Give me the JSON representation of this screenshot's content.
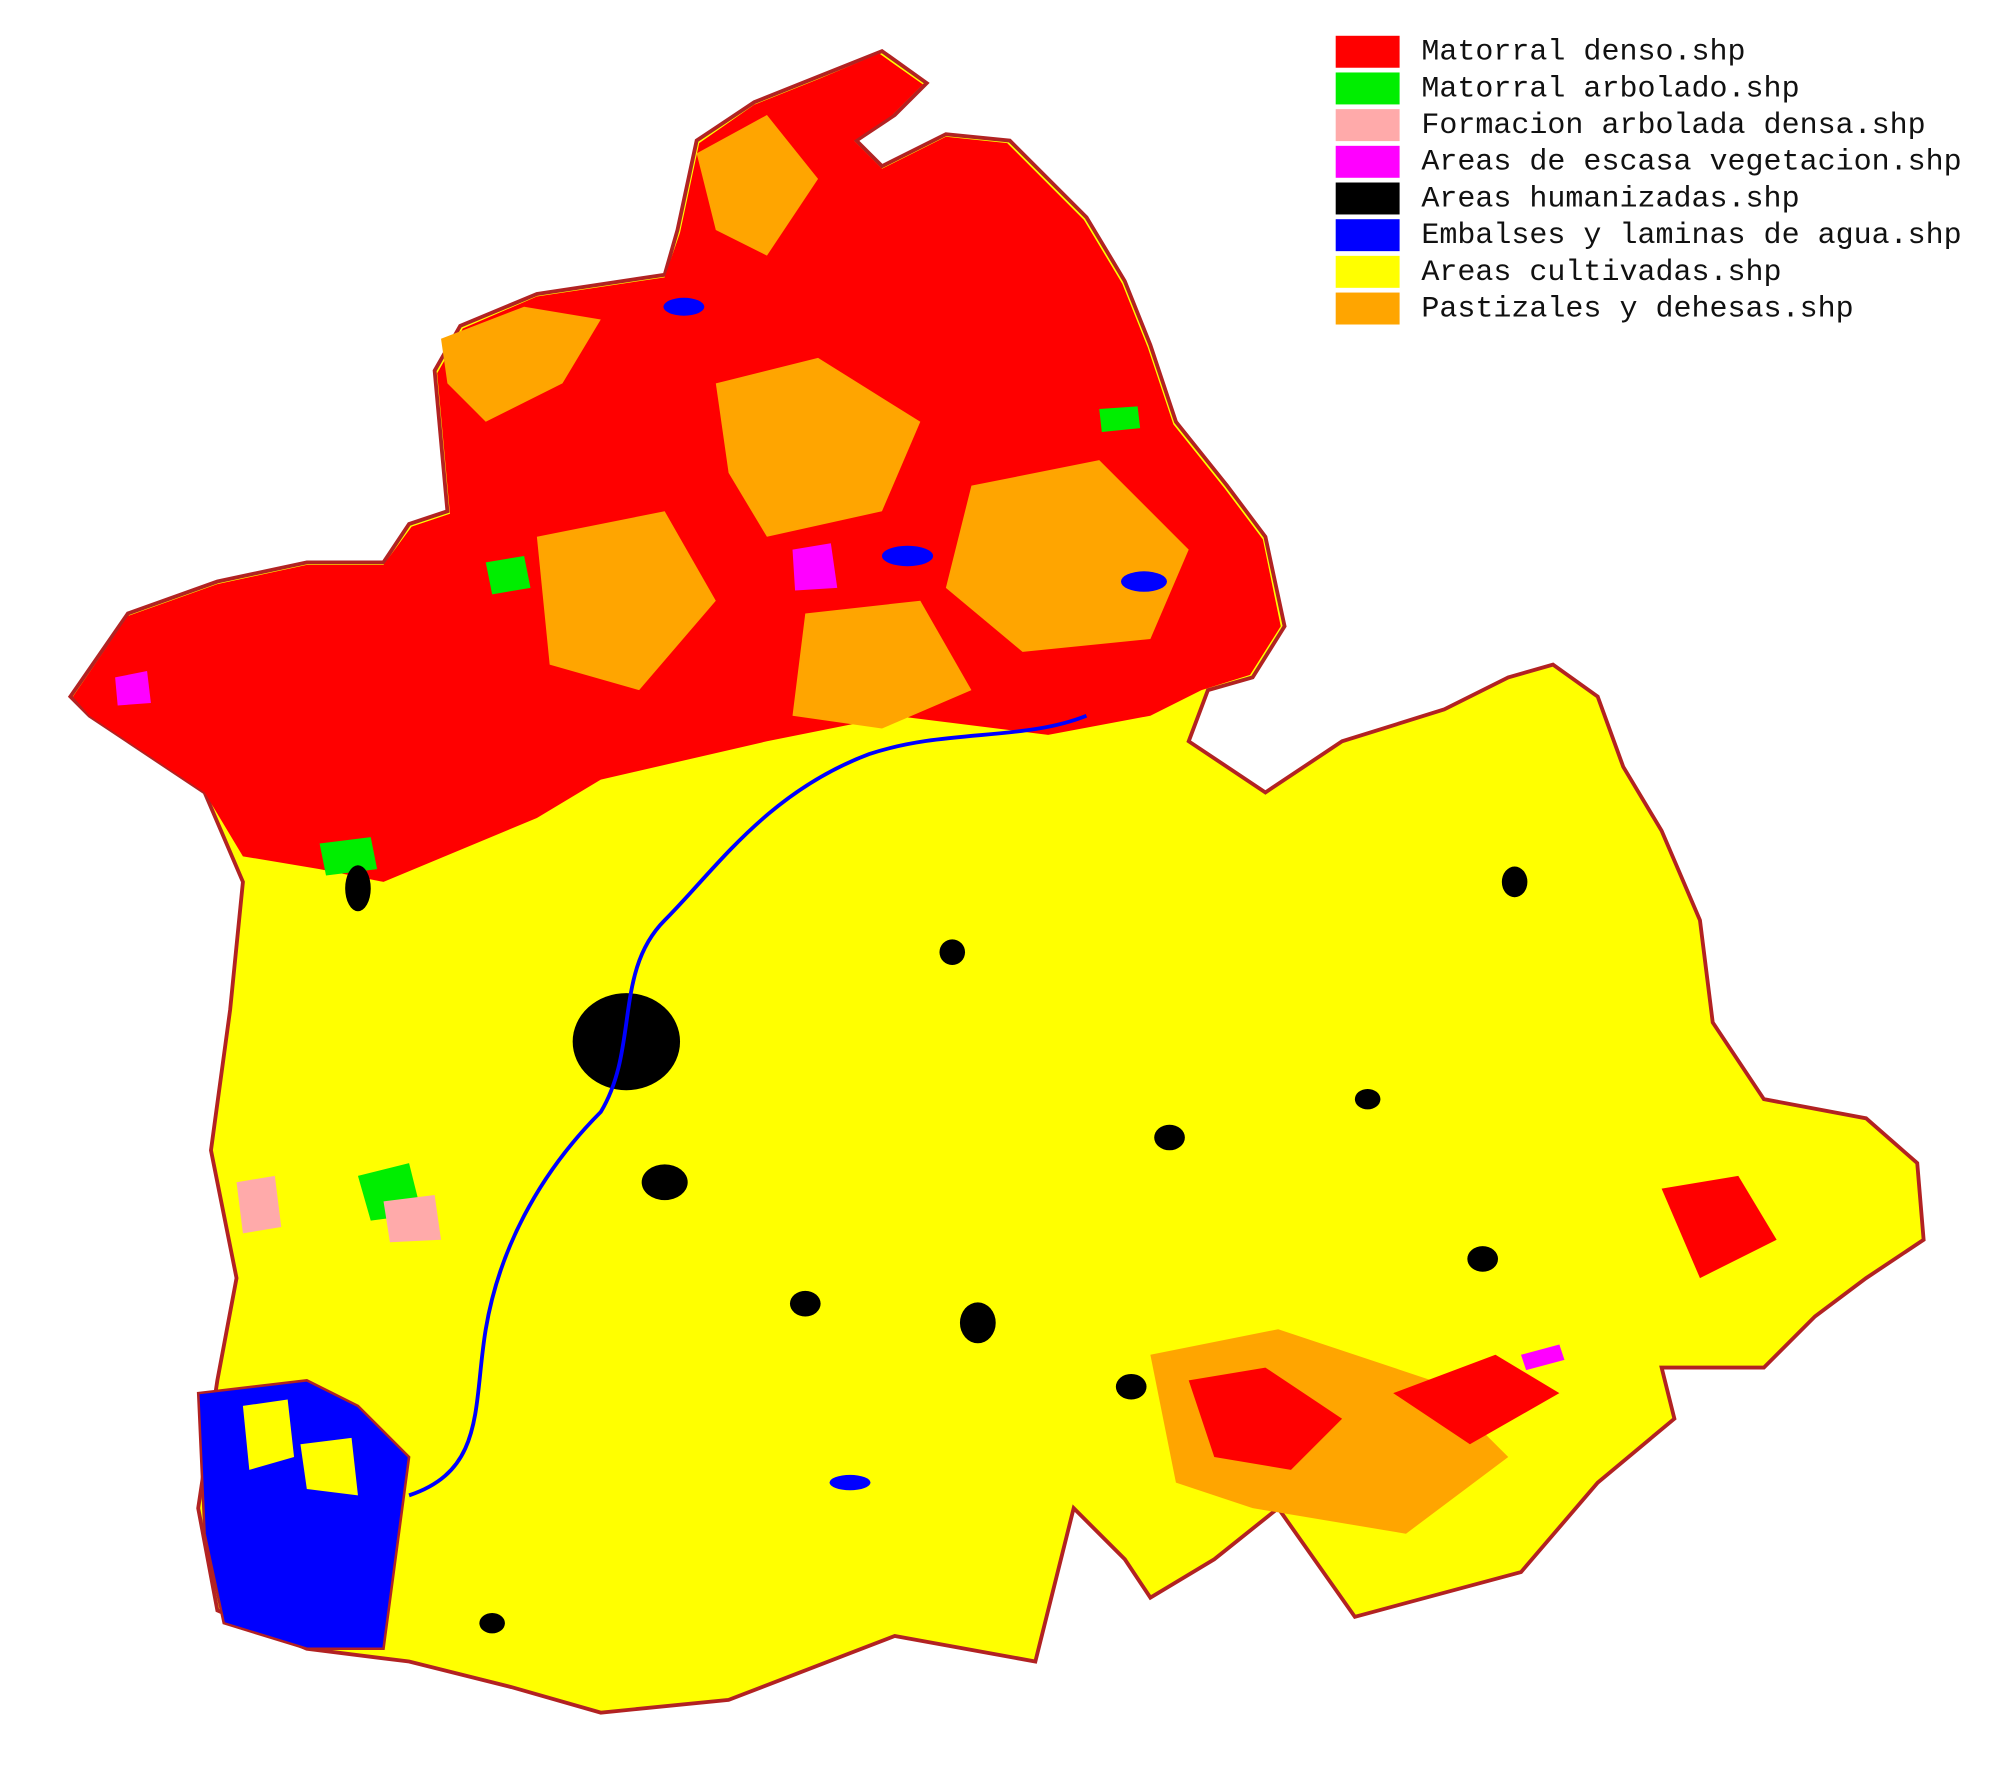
{
  "legend": {
    "items": [
      {
        "name": "Matorral denso.shp",
        "color": "#ff0000"
      },
      {
        "name": "Matorral arbolado.shp",
        "color": "#00ee00"
      },
      {
        "name": "Formacion arbolada densa.shp",
        "color": "#ffaaaa"
      },
      {
        "name": "Areas de escasa vegetacion.shp",
        "color": "#ff00ff"
      },
      {
        "name": "Areas humanizadas.shp",
        "color": "#000000"
      },
      {
        "name": "Embalses y laminas de agua.shp",
        "color": "#0000ff"
      },
      {
        "name": "Areas cultivadas.shp",
        "color": "#ffff00"
      },
      {
        "name": "Pastizales y dehesas.shp",
        "color": "#ffa500"
      }
    ]
  }
}
